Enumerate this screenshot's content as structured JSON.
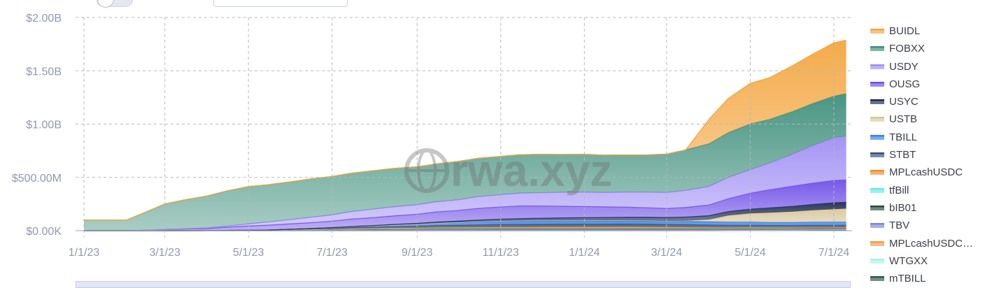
{
  "chart_data": {
    "type": "area",
    "stacked": true,
    "x": [
      "1/1/23",
      "1/15/23",
      "2/1/23",
      "2/15/23",
      "3/1/23",
      "3/15/23",
      "4/1/23",
      "4/15/23",
      "5/1/23",
      "5/15/23",
      "6/1/23",
      "6/15/23",
      "7/1/23",
      "7/15/23",
      "8/1/23",
      "8/15/23",
      "9/1/23",
      "9/15/23",
      "10/1/23",
      "10/15/23",
      "11/1/23",
      "11/15/23",
      "12/1/23",
      "12/15/23",
      "1/1/24",
      "1/15/24",
      "2/1/24",
      "2/15/24",
      "3/1/24",
      "3/15/24",
      "4/1/24",
      "4/15/24",
      "5/1/24",
      "5/15/24",
      "6/1/24",
      "6/15/24",
      "7/1/24",
      "7/10/24"
    ],
    "x_tick_labels": [
      "1/1/23",
      "3/1/23",
      "5/1/23",
      "7/1/23",
      "9/1/23",
      "11/1/23",
      "1/1/24",
      "3/1/24",
      "5/1/24",
      "7/1/24"
    ],
    "y_tick_labels": [
      "$2.00B",
      "$1.50B",
      "$1.00B",
      "$500.00M",
      "$0.00K"
    ],
    "ylim": [
      0,
      2000000000
    ],
    "grid": true,
    "legend_position": "right",
    "watermark": "rwa.xyz",
    "series": [
      {
        "name": "mTBILL",
        "color": "#2f5a48",
        "values": [
          0,
          0,
          0,
          0,
          0,
          0,
          0,
          0,
          0,
          0,
          0,
          0,
          0,
          0,
          0,
          0,
          0,
          0,
          0,
          0,
          0,
          0,
          0,
          0,
          0,
          0,
          0,
          0,
          0,
          0,
          0,
          1,
          2,
          3,
          4,
          5,
          6,
          6
        ]
      },
      {
        "name": "WTGXX",
        "color": "#a8f1ee",
        "values": [
          0,
          0,
          0,
          0,
          0,
          0,
          0,
          0,
          0,
          0,
          1,
          1,
          1,
          2,
          2,
          2,
          3,
          3,
          3,
          3,
          4,
          4,
          4,
          4,
          4,
          4,
          5,
          5,
          5,
          5,
          5,
          5,
          6,
          6,
          6,
          6,
          6,
          6
        ]
      },
      {
        "name": "MPLcashUSDC…",
        "color": "#f59c4d",
        "values": [
          0,
          0,
          0,
          0,
          0,
          0,
          0,
          0,
          0,
          0,
          0,
          0,
          0,
          0,
          0,
          0,
          0,
          0,
          0,
          0,
          0,
          0,
          0,
          0,
          0,
          0,
          0,
          0,
          0,
          0,
          0,
          0,
          0,
          0,
          0,
          0,
          0,
          0
        ]
      },
      {
        "name": "TBV",
        "color": "#7c86dd",
        "values": [
          0,
          0,
          0,
          0,
          0,
          0,
          1,
          2,
          3,
          4,
          5,
          6,
          7,
          8,
          8,
          9,
          9,
          10,
          10,
          10,
          10,
          10,
          10,
          10,
          10,
          10,
          10,
          10,
          9,
          9,
          8,
          8,
          8,
          7,
          7,
          7,
          7,
          7
        ]
      },
      {
        "name": "bIB01",
        "color": "#2c4a3c",
        "values": [
          0,
          0,
          0,
          0,
          0,
          0,
          0,
          0,
          1,
          2,
          3,
          3,
          4,
          4,
          5,
          5,
          5,
          6,
          6,
          6,
          6,
          6,
          6,
          6,
          6,
          6,
          6,
          6,
          6,
          6,
          6,
          5,
          5,
          5,
          5,
          5,
          5,
          5
        ]
      },
      {
        "name": "tfBill",
        "color": "#64ecdf",
        "values": [
          0,
          0,
          0,
          0,
          0,
          0,
          0,
          0,
          0,
          0,
          0,
          0,
          1,
          1,
          2,
          2,
          2,
          3,
          3,
          3,
          3,
          3,
          3,
          3,
          3,
          3,
          3,
          3,
          3,
          3,
          3,
          3,
          3,
          3,
          3,
          3,
          3,
          3
        ]
      },
      {
        "name": "MPLcashUSDC",
        "color": "#f28a2e",
        "values": [
          0,
          0,
          0,
          0,
          0,
          0,
          0,
          0,
          0,
          0,
          2,
          3,
          4,
          5,
          6,
          7,
          8,
          9,
          10,
          11,
          12,
          12,
          13,
          13,
          13,
          13,
          13,
          12,
          11,
          10,
          9,
          8,
          7,
          6,
          5,
          5,
          5,
          5
        ]
      },
      {
        "name": "STBT",
        "color": "#37527a",
        "values": [
          0,
          0,
          0,
          0,
          0,
          0,
          0,
          0,
          0,
          0,
          2,
          4,
          6,
          9,
          12,
          14,
          16,
          18,
          20,
          22,
          24,
          25,
          25,
          26,
          26,
          26,
          26,
          26,
          25,
          24,
          23,
          22,
          21,
          20,
          20,
          20,
          20,
          20
        ]
      },
      {
        "name": "TBILL",
        "color": "#3a82e8",
        "values": [
          0,
          0,
          0,
          0,
          0,
          0,
          0,
          0,
          0,
          0,
          1,
          3,
          5,
          8,
          10,
          14,
          18,
          22,
          26,
          30,
          33,
          35,
          36,
          36,
          36,
          36,
          35,
          34,
          33,
          32,
          31,
          30,
          30,
          29,
          29,
          30,
          30,
          30
        ]
      },
      {
        "name": "USTB",
        "color": "#d9c79d",
        "values": [
          0,
          0,
          0,
          0,
          0,
          0,
          0,
          0,
          0,
          0,
          0,
          0,
          0,
          0,
          0,
          0,
          0,
          0,
          0,
          0,
          0,
          0,
          0,
          0,
          0,
          0,
          0,
          0,
          0,
          5,
          20,
          60,
          80,
          90,
          100,
          110,
          120,
          125
        ]
      },
      {
        "name": "USYC",
        "color": "#1d2c4e",
        "values": [
          0,
          0,
          0,
          0,
          0,
          0,
          0,
          0,
          0,
          0,
          0,
          0,
          1,
          2,
          4,
          6,
          8,
          10,
          12,
          14,
          16,
          18,
          20,
          22,
          24,
          26,
          28,
          30,
          32,
          34,
          36,
          38,
          40,
          45,
          50,
          55,
          60,
          60
        ]
      },
      {
        "name": "OUSG",
        "color": "#6f4fe7",
        "values": [
          0,
          0,
          0,
          4,
          10,
          15,
          20,
          30,
          40,
          45,
          50,
          55,
          60,
          70,
          75,
          80,
          85,
          95,
          100,
          110,
          115,
          120,
          115,
          110,
          105,
          100,
          95,
          90,
          85,
          90,
          100,
          120,
          150,
          170,
          190,
          200,
          210,
          210
        ]
      },
      {
        "name": "USDY",
        "color": "#a08ef5",
        "values": [
          0,
          0,
          0,
          0,
          1,
          3,
          5,
          10,
          20,
          30,
          40,
          50,
          60,
          70,
          80,
          85,
          90,
          95,
          100,
          110,
          115,
          120,
          125,
          130,
          135,
          135,
          140,
          145,
          150,
          160,
          175,
          200,
          220,
          250,
          300,
          350,
          400,
          410
        ]
      },
      {
        "name": "FOBXX",
        "color": "#3f8f7c",
        "values": [
          100,
          100,
          100,
          170,
          240,
          270,
          300,
          330,
          350,
          350,
          355,
          360,
          360,
          360,
          360,
          360,
          355,
          355,
          360,
          360,
          360,
          360,
          360,
          355,
          355,
          350,
          350,
          350,
          360,
          380,
          400,
          420,
          430,
          410,
          400,
          395,
          390,
          400
        ]
      },
      {
        "name": "BUIDL",
        "color": "#f3a640",
        "values": [
          0,
          0,
          0,
          0,
          0,
          0,
          0,
          0,
          0,
          0,
          0,
          0,
          0,
          0,
          0,
          0,
          0,
          0,
          0,
          0,
          0,
          0,
          0,
          0,
          0,
          0,
          0,
          0,
          0,
          0,
          230,
          320,
          380,
          390,
          430,
          460,
          500,
          500
        ]
      }
    ],
    "units": "millions USD",
    "legend_order": [
      "BUIDL",
      "FOBXX",
      "USDY",
      "OUSG",
      "USYC",
      "USTB",
      "TBILL",
      "STBT",
      "MPLcashUSDC",
      "tfBill",
      "bIB01",
      "TBV",
      "MPLcashUSDC…",
      "WTGXX",
      "mTBILL"
    ]
  }
}
